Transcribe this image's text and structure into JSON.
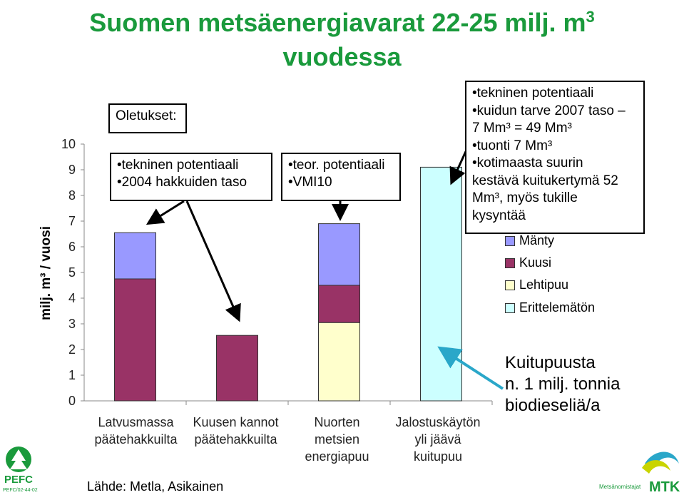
{
  "title": {
    "line1": "Suomen metsäenergiavarat 22-25 milj. m",
    "sup": "3",
    "line2": "vuodessa"
  },
  "oletukset": "Oletukset:",
  "box_left": [
    "•tekninen potentiaali",
    "•2004 hakkuiden taso"
  ],
  "box_mid": [
    "•teor. potentiaali",
    "•VMI10"
  ],
  "box_right": [
    "•tekninen potentiaali",
    "•kuidun tarve 2007 taso –",
    "7 Mm³ = 49 Mm³",
    "•tuonti 7 Mm³",
    "•kotimaasta suurin",
    "kestävä kuitukertymä 52",
    "Mm³, myös tukille",
    "kysyntää"
  ],
  "annotation": [
    "Kuitupuusta",
    "n. 1 milj. tonnia",
    "biodieseliä/a"
  ],
  "source": "Lähde: Metla, Asikainen",
  "logos": {
    "pefc": "PEFC",
    "pefc_code": "PEFC/02-44-02",
    "mtk": "MTK",
    "mtk_sub": "Metsänomistajat"
  },
  "colors": {
    "manty": "#9999ff",
    "kuusi": "#993366",
    "lehtipuu": "#ffffcc",
    "erittelematon": "#ccffff",
    "title": "#1a9a3c"
  },
  "chart_data": {
    "type": "bar",
    "stacked": true,
    "ylabel": "milj. m³ / vuosi",
    "ylim": [
      0,
      10
    ],
    "yticks": [
      "0",
      "1",
      "2",
      "3",
      "4",
      "5",
      "6",
      "7",
      "8",
      "9",
      "10"
    ],
    "grid": false,
    "legend_position": "right",
    "categories": [
      [
        "Latvusmassa",
        "päätehakkuilta"
      ],
      [
        "Kuusen kannot",
        "päätehakkuilta"
      ],
      [
        "Nuorten",
        "metsien",
        "energiapuu"
      ],
      [
        "Jalostuskäytön",
        "yli jäävä",
        "kuitupuu"
      ]
    ],
    "series": [
      {
        "name": "Erittelemätön",
        "color": "#ccffff",
        "values": [
          0,
          0,
          0,
          9.1
        ]
      },
      {
        "name": "Lehtipuu",
        "color": "#ffffcc",
        "values": [
          0,
          0,
          3.05,
          0
        ]
      },
      {
        "name": "Kuusi",
        "color": "#993366",
        "values": [
          4.75,
          2.55,
          1.45,
          0
        ]
      },
      {
        "name": "Mänty",
        "color": "#9999ff",
        "values": [
          1.8,
          0,
          2.4,
          0
        ]
      }
    ],
    "legend_order": [
      "Mänty",
      "Kuusi",
      "Lehtipuu",
      "Erittelemätön"
    ]
  }
}
